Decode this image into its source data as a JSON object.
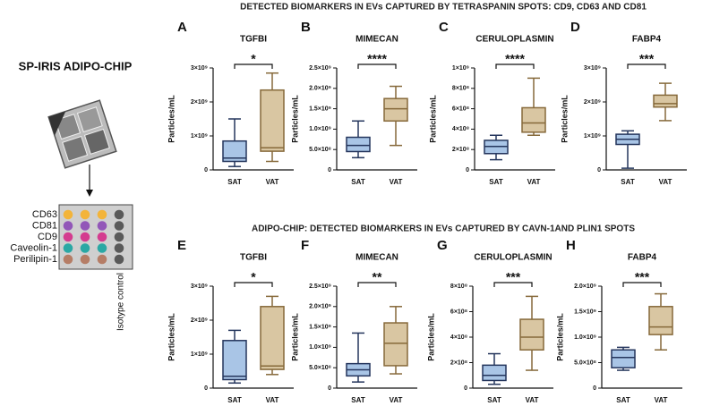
{
  "figure": {
    "section_titles": [
      "DETECTED BIOMARKERS IN EVs CAPTURED BY TETRASPANIN SPOTS: CD9, CD63 AND CD81",
      "ADIPO-CHIP: DETECTED BIOMARKERS IN EVs CAPTURED BY CAVN-1AND PLIN1 SPOTS"
    ],
    "chip": {
      "title": "SP-IRIS ADIPO-CHIP",
      "rows": [
        {
          "label": "CD63",
          "color": "#f3b43a"
        },
        {
          "label": "CD81",
          "color": "#9257b8"
        },
        {
          "label": "CD9",
          "color": "#d43c8f"
        },
        {
          "label": "Caveolin-1",
          "color": "#2aa8a4"
        },
        {
          "label": "Perilipin-1",
          "color": "#b57d66"
        }
      ],
      "control_color": "#5a5a5a",
      "column_label": "Isotype control"
    }
  },
  "chart_data": [
    {
      "type": "box",
      "panel": "A",
      "title": "TGFBI",
      "y_label": "Particles/mL",
      "categories": [
        "SAT",
        "VAT"
      ],
      "colors": [
        "#a9c5e6",
        "#d9c6a2"
      ],
      "stroke_colors": [
        "#24355c",
        "#86693a"
      ],
      "boxes": [
        [
          100000000,
          250000000,
          350000000,
          850000000,
          1500000000
        ],
        [
          250000000,
          550000000,
          650000000,
          2350000000,
          2850000000
        ]
      ],
      "annotation": "*",
      "ylim": [
        0,
        3000000000
      ],
      "yticks": [
        0,
        {
          "value": 1000000000,
          "label": "1×10⁹"
        },
        {
          "value": 2000000000,
          "label": "2×10⁹"
        },
        {
          "value": 3000000000,
          "label": "3×10⁹"
        }
      ]
    },
    {
      "type": "box",
      "panel": "B",
      "title": "MIMECAN",
      "y_label": "Particles/mL",
      "categories": [
        "SAT",
        "VAT"
      ],
      "colors": [
        "#a9c5e6",
        "#d9c6a2"
      ],
      "stroke_colors": [
        "#24355c",
        "#86693a"
      ],
      "boxes": [
        [
          300000000,
          450000000,
          600000000,
          800000000,
          1200000000
        ],
        [
          600000000,
          1200000000,
          1500000000,
          1750000000,
          2050000000
        ]
      ],
      "annotation": "****",
      "ylim": [
        0,
        2500000000
      ],
      "yticks": [
        0,
        {
          "value": 500000000,
          "label": "5.0×10⁸"
        },
        {
          "value": 1000000000,
          "label": "1.0×10⁹"
        },
        {
          "value": 1500000000,
          "label": "1.5×10⁹"
        },
        {
          "value": 2000000000,
          "label": "2.0×10⁹"
        },
        {
          "value": 2500000000,
          "label": "2.5×10⁹"
        }
      ]
    },
    {
      "type": "box",
      "panel": "C",
      "title": "CERULOPLASMIN",
      "y_label": "Particles/mL",
      "categories": [
        "SAT",
        "VAT"
      ],
      "colors": [
        "#a9c5e6",
        "#d9c6a2"
      ],
      "stroke_colors": [
        "#24355c",
        "#86693a"
      ],
      "boxes": [
        [
          100000000,
          160000000,
          230000000,
          290000000,
          340000000
        ],
        [
          340000000,
          370000000,
          460000000,
          610000000,
          900000000
        ]
      ],
      "annotation": "****",
      "ylim": [
        0,
        1000000000
      ],
      "yticks": [
        0,
        {
          "value": 200000000,
          "label": "2×10⁸"
        },
        {
          "value": 400000000,
          "label": "4×10⁸"
        },
        {
          "value": 600000000,
          "label": "6×10⁸"
        },
        {
          "value": 800000000,
          "label": "8×10⁸"
        },
        {
          "value": 1000000000,
          "label": "1×10⁹"
        }
      ]
    },
    {
      "type": "box",
      "panel": "D",
      "title": "FABP4",
      "y_label": "Particles/mL",
      "categories": [
        "SAT",
        "VAT"
      ],
      "colors": [
        "#a9c5e6",
        "#d9c6a2"
      ],
      "stroke_colors": [
        "#24355c",
        "#86693a"
      ],
      "boxes": [
        [
          50000000,
          750000000,
          900000000,
          1050000000,
          1150000000
        ],
        [
          1450000000,
          1850000000,
          1950000000,
          2200000000,
          2550000000
        ]
      ],
      "annotation": "***",
      "ylim": [
        0,
        3000000000
      ],
      "yticks": [
        0,
        {
          "value": 1000000000,
          "label": "1×10⁹"
        },
        {
          "value": 2000000000,
          "label": "2×10⁹"
        },
        {
          "value": 3000000000,
          "label": "3×10⁹"
        }
      ]
    },
    {
      "type": "box",
      "panel": "E",
      "title": "TGFBI",
      "y_label": "Particles/mL",
      "categories": [
        "SAT",
        "VAT"
      ],
      "colors": [
        "#a9c5e6",
        "#d9c6a2"
      ],
      "stroke_colors": [
        "#24355c",
        "#86693a"
      ],
      "boxes": [
        [
          150000000,
          250000000,
          350000000,
          1400000000,
          1700000000
        ],
        [
          400000000,
          550000000,
          650000000,
          2400000000,
          2700000000
        ]
      ],
      "annotation": "*",
      "ylim": [
        0,
        3000000000
      ],
      "yticks": [
        0,
        {
          "value": 1000000000,
          "label": "1×10⁹"
        },
        {
          "value": 2000000000,
          "label": "2×10⁹"
        },
        {
          "value": 3000000000,
          "label": "3×10⁹"
        }
      ]
    },
    {
      "type": "box",
      "panel": "F",
      "title": "MIMECAN",
      "y_label": "Particles/mL",
      "categories": [
        "SAT",
        "VAT"
      ],
      "colors": [
        "#a9c5e6",
        "#d9c6a2"
      ],
      "stroke_colors": [
        "#24355c",
        "#86693a"
      ],
      "boxes": [
        [
          150000000,
          300000000,
          450000000,
          600000000,
          1350000000
        ],
        [
          350000000,
          550000000,
          1100000000,
          1600000000,
          2000000000
        ]
      ],
      "annotation": "**",
      "ylim": [
        0,
        2500000000
      ],
      "yticks": [
        0,
        {
          "value": 500000000,
          "label": "5.0×10⁸"
        },
        {
          "value": 1000000000,
          "label": "1.0×10⁹"
        },
        {
          "value": 1500000000,
          "label": "1.5×10⁹"
        },
        {
          "value": 2000000000,
          "label": "2.0×10⁹"
        },
        {
          "value": 2500000000,
          "label": "2.5×10⁹"
        }
      ]
    },
    {
      "type": "box",
      "panel": "G",
      "title": "CERULOPLASMIN",
      "y_label": "Particles/mL",
      "categories": [
        "SAT",
        "VAT"
      ],
      "colors": [
        "#a9c5e6",
        "#d9c6a2"
      ],
      "stroke_colors": [
        "#24355c",
        "#86693a"
      ],
      "boxes": [
        [
          30000000,
          60000000,
          100000000,
          180000000,
          270000000
        ],
        [
          140000000,
          300000000,
          400000000,
          540000000,
          720000000
        ]
      ],
      "annotation": "***",
      "ylim": [
        0,
        800000000
      ],
      "yticks": [
        0,
        {
          "value": 200000000,
          "label": "2×10⁸"
        },
        {
          "value": 400000000,
          "label": "4×10⁸"
        },
        {
          "value": 600000000,
          "label": "6×10⁸"
        },
        {
          "value": 800000000,
          "label": "8×10⁸"
        }
      ]
    },
    {
      "type": "box",
      "panel": "H",
      "title": "FABP4",
      "y_label": "Particles/mL",
      "categories": [
        "SAT",
        "VAT"
      ],
      "colors": [
        "#a9c5e6",
        "#d9c6a2"
      ],
      "stroke_colors": [
        "#24355c",
        "#86693a"
      ],
      "boxes": [
        [
          350000000,
          400000000,
          600000000,
          750000000,
          800000000
        ],
        [
          750000000,
          1050000000,
          1200000000,
          1600000000,
          1850000000
        ]
      ],
      "annotation": "***",
      "ylim": [
        0,
        2000000000
      ],
      "yticks": [
        0,
        {
          "value": 500000000,
          "label": "5.0×10⁸"
        },
        {
          "value": 1000000000,
          "label": "1.0×10⁹"
        },
        {
          "value": 1500000000,
          "label": "1.5×10⁹"
        },
        {
          "value": 2000000000,
          "label": "2.0×10⁹"
        }
      ]
    }
  ]
}
